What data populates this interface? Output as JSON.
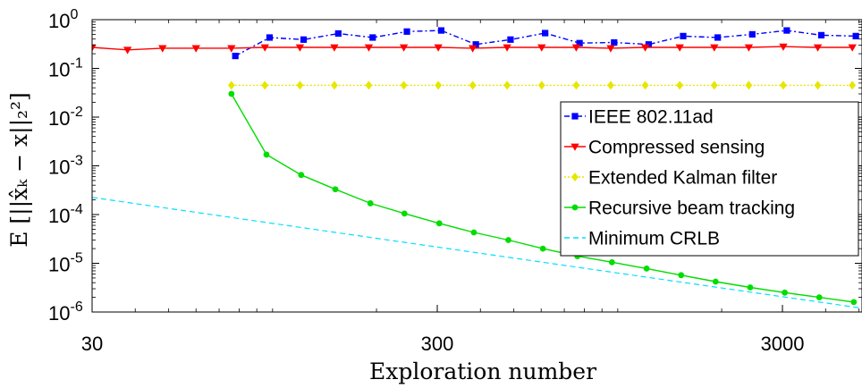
{
  "chart_data": {
    "type": "line",
    "xlabel": "Exploration number",
    "ylabel": "E [||x̂ₖ − x||₂²]",
    "xscale": "log",
    "yscale": "log",
    "xlim": [
      30,
      5100
    ],
    "ylim": [
      1e-06,
      1
    ],
    "xticks": [
      {
        "value": 30,
        "label": "30"
      },
      {
        "value": 300,
        "label": "300"
      },
      {
        "value": 3000,
        "label": "3000"
      }
    ],
    "yticks": [
      {
        "value": 1,
        "base": "10",
        "exp": "0"
      },
      {
        "value": 0.1,
        "base": "10",
        "exp": "-1"
      },
      {
        "value": 0.01,
        "base": "10",
        "exp": "-2"
      },
      {
        "value": 0.001,
        "base": "10",
        "exp": "-3"
      },
      {
        "value": 0.0001,
        "base": "10",
        "exp": "-4"
      },
      {
        "value": 1e-05,
        "base": "10",
        "exp": "-5"
      },
      {
        "value": 1e-06,
        "base": "10",
        "exp": "-6"
      }
    ],
    "grid": false,
    "legend_position": "right",
    "series": [
      {
        "name": "IEEE 802.11ad",
        "color": "#0000ff",
        "dash": "6,3,2,3",
        "marker": "square",
        "x": [
          78,
          98,
          123,
          155,
          195,
          245,
          308,
          388,
          489,
          616,
          775,
          976,
          1229,
          1547,
          1948,
          2453,
          3088,
          3888,
          4895
        ],
        "y": [
          0.18,
          0.43,
          0.39,
          0.52,
          0.43,
          0.57,
          0.6,
          0.31,
          0.39,
          0.53,
          0.33,
          0.34,
          0.31,
          0.46,
          0.43,
          0.5,
          0.6,
          0.48,
          0.46
        ]
      },
      {
        "name": "Compressed sensing",
        "color": "#ff0000",
        "dash": "",
        "marker": "triangle-down",
        "x": [
          30,
          38,
          48,
          60,
          76,
          95,
          120,
          151,
          190,
          240,
          302,
          380,
          478,
          602,
          758,
          954,
          1201,
          1512,
          1904,
          2397,
          3017,
          3798,
          4782
        ],
        "y": [
          0.27,
          0.24,
          0.26,
          0.26,
          0.26,
          0.27,
          0.27,
          0.27,
          0.27,
          0.27,
          0.27,
          0.26,
          0.27,
          0.27,
          0.27,
          0.26,
          0.27,
          0.27,
          0.27,
          0.27,
          0.28,
          0.27,
          0.27
        ]
      },
      {
        "name": "Extended Kalman filter",
        "color": "#e6e600",
        "dash": "2,2",
        "marker": "diamond",
        "x": [
          76,
          95,
          120,
          151,
          190,
          240,
          302,
          380,
          478,
          602,
          758,
          954,
          1201,
          1512,
          1904,
          2397,
          3017,
          3798,
          4782
        ],
        "y": [
          0.045,
          0.045,
          0.045,
          0.045,
          0.045,
          0.045,
          0.045,
          0.045,
          0.045,
          0.045,
          0.045,
          0.045,
          0.045,
          0.045,
          0.045,
          0.045,
          0.045,
          0.045,
          0.045
        ]
      },
      {
        "name": "Recursive beam tracking",
        "color": "#00dd00",
        "dash": "",
        "marker": "circle",
        "x": [
          76,
          96,
          121,
          152,
          192,
          241,
          304,
          383,
          482,
          607,
          764,
          962,
          1212,
          1526,
          1921,
          2419,
          3046,
          3835,
          4828
        ],
        "y": [
          0.03,
          0.0017,
          0.00065,
          0.00033,
          0.00017,
          0.000105,
          6.6e-05,
          4.3e-05,
          3e-05,
          2e-05,
          1.4e-05,
          1.05e-05,
          7.8e-06,
          5.7e-06,
          4.2e-06,
          3.2e-06,
          2.5e-06,
          2e-06,
          1.6e-06
        ]
      },
      {
        "name": "Minimum CRLB",
        "color": "#00e0ff",
        "dash": "6,4",
        "marker": "none",
        "x": [
          30,
          5100
        ],
        "y": [
          0.000225,
          1.2e-06
        ]
      }
    ]
  }
}
